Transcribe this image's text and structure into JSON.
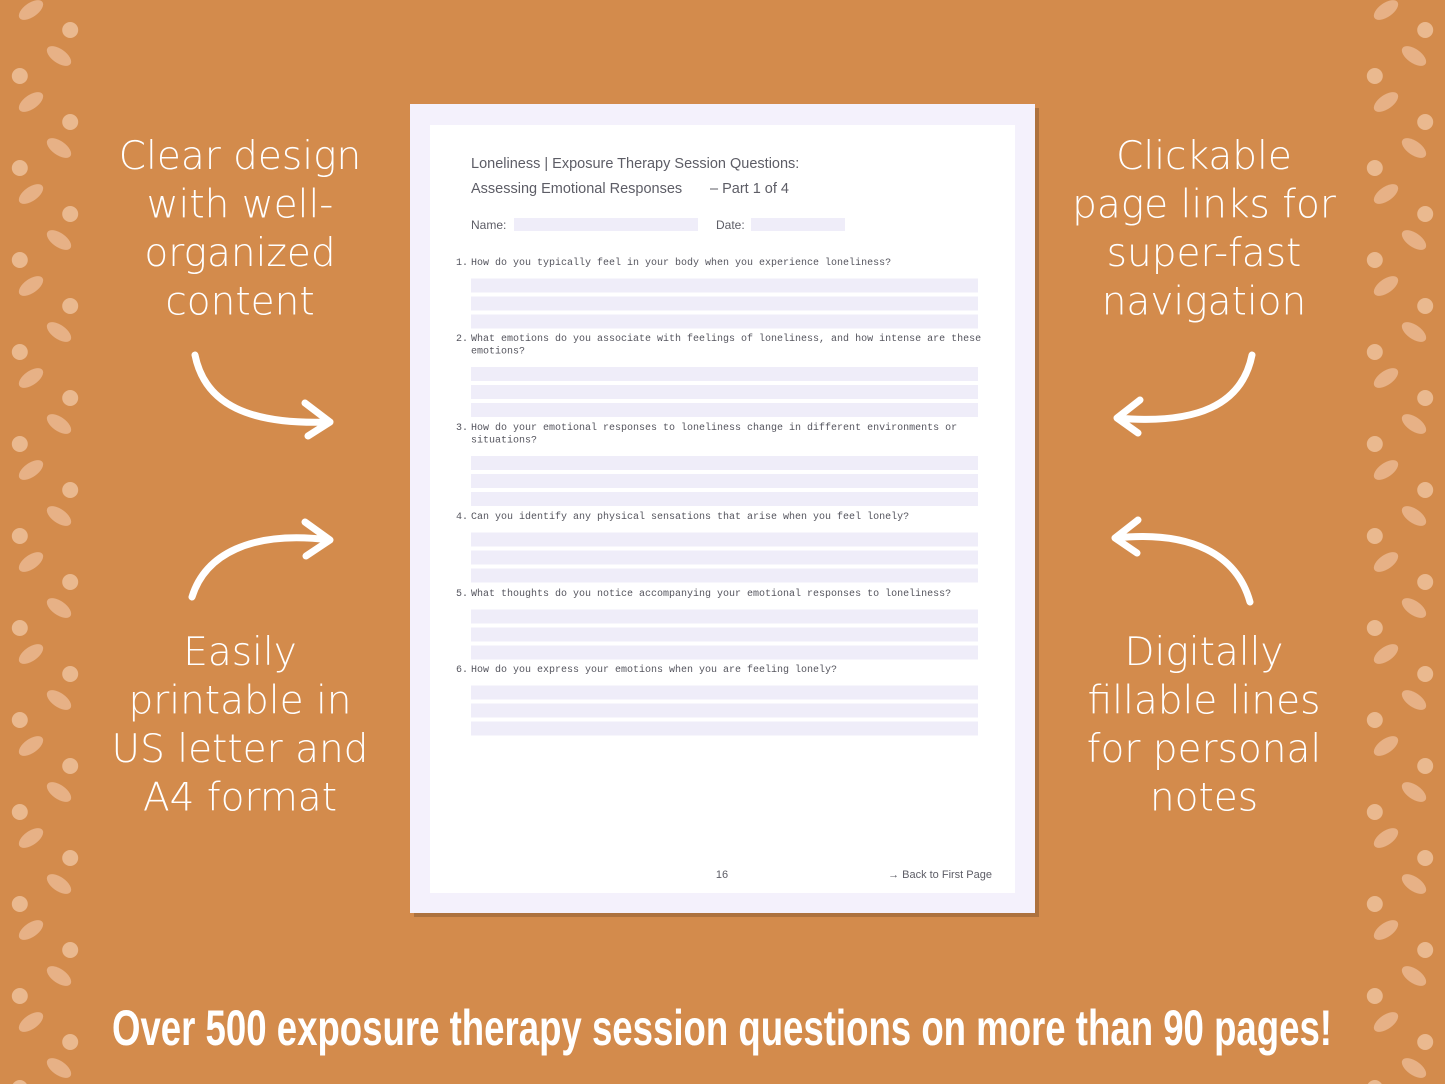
{
  "left_features": [
    {
      "lines": [
        "Clear design",
        "with well-",
        "organized",
        "content"
      ]
    },
    {
      "lines": [
        "Easily",
        "printable in",
        "US letter and",
        "A4 format"
      ]
    }
  ],
  "right_features": [
    {
      "lines": [
        "Clickable",
        "page links for",
        "super-fast",
        "navigation"
      ]
    },
    {
      "lines": [
        "Digitally",
        "fillable lines",
        "for personal",
        "notes"
      ]
    }
  ],
  "document": {
    "title": "Loneliness | Exposure Therapy Session Questions:",
    "subtitle": "Assessing Emotional Responses",
    "part": "– Part 1 of 4",
    "name_label": "Name:",
    "date_label": "Date:",
    "questions": [
      {
        "number": "1.",
        "lines": [
          "How do you typically feel in your body when you experience loneliness?"
        ]
      },
      {
        "number": "2.",
        "lines": [
          "What emotions do you associate with feelings of loneliness, and how intense are these",
          "emotions?"
        ]
      },
      {
        "number": "3.",
        "lines": [
          "How do your emotional responses to loneliness change in different environments or",
          "situations?"
        ]
      },
      {
        "number": "4.",
        "lines": [
          "Can you identify any physical sensations that arise when you feel lonely?"
        ]
      },
      {
        "number": "5.",
        "lines": [
          "What thoughts do you notice accompanying your emotional responses to loneliness?"
        ]
      },
      {
        "number": "6.",
        "lines": [
          "How do you express your emotions when you are feeling lonely?"
        ]
      }
    ],
    "page_number": "16",
    "back_link": "→ Back to First Page"
  },
  "banner": "Over 500 exposure therapy session questions on more than 90 pages!"
}
